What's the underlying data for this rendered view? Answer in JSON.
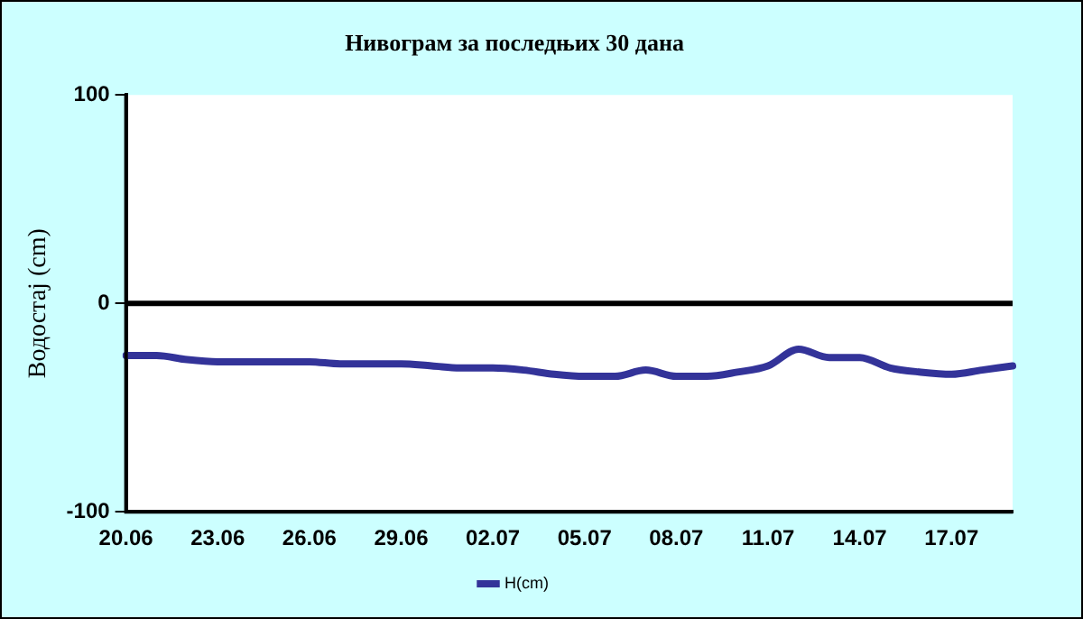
{
  "chart_data": {
    "type": "line",
    "title": "Нивограм за последњих 30 дана",
    "ylabel": "Водостај (cm)",
    "categories": [
      "20.06",
      null,
      null,
      "23.06",
      null,
      null,
      "26.06",
      null,
      null,
      "29.06",
      null,
      null,
      "02.07",
      null,
      null,
      "05.07",
      null,
      null,
      "08.07",
      null,
      null,
      "11.07",
      null,
      null,
      "14.07",
      null,
      null,
      "17.07",
      null,
      null
    ],
    "series": [
      {
        "name": "H(cm)",
        "color": "#333399",
        "values": [
          -25,
          -25,
          -27,
          -28,
          -28,
          -28,
          -28,
          -29,
          -29,
          -29,
          -30,
          -31,
          -31,
          -32,
          -34,
          -35,
          -35,
          -32,
          -35,
          -35,
          -33,
          -30,
          -22,
          -26,
          -26,
          -31,
          -33,
          -34,
          -32,
          -30
        ]
      }
    ],
    "ylim": [
      -100,
      100
    ],
    "yticks": [
      -100,
      0,
      100
    ],
    "grid": false,
    "legend": "bottom",
    "marker": "none",
    "line_style": "solid",
    "ref_lines": [
      {
        "axis": "y",
        "value": 0,
        "color": "#000000"
      }
    ]
  }
}
